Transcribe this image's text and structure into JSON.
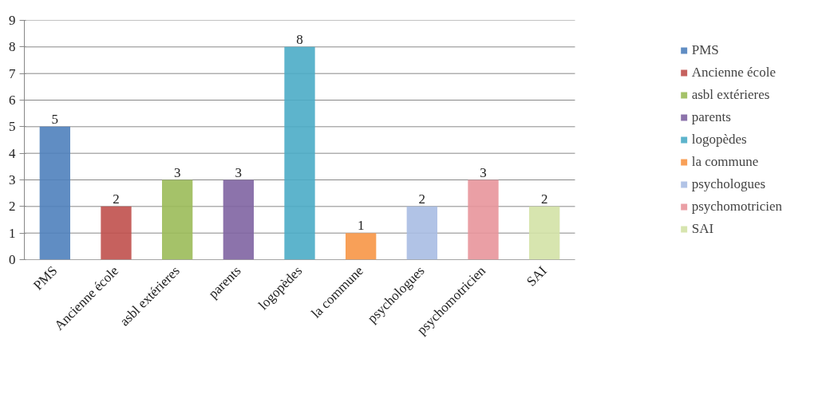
{
  "chart_data": {
    "type": "bar",
    "stacked": true,
    "categories": [
      "PMS",
      "Ancienne école",
      "asbl extérieres",
      "parents",
      "logopèdes",
      "la commune",
      "psychologues",
      "psychomotricien",
      "SAI"
    ],
    "series": [
      {
        "name": "PMS",
        "color": "#4f81bd",
        "values": [
          5,
          null,
          null,
          null,
          null,
          null,
          null,
          null,
          null
        ]
      },
      {
        "name": "Ancienne école",
        "color": "#c0504d",
        "values": [
          null,
          2,
          null,
          null,
          null,
          null,
          null,
          null,
          null
        ]
      },
      {
        "name": "asbl extérieres",
        "color": "#9bbb59",
        "values": [
          null,
          null,
          3,
          null,
          null,
          null,
          null,
          null,
          null
        ]
      },
      {
        "name": "parents",
        "color": "#8064a2",
        "values": [
          null,
          null,
          null,
          3,
          null,
          null,
          null,
          null,
          null
        ]
      },
      {
        "name": "logopèdes",
        "color": "#4bacc6",
        "values": [
          null,
          null,
          null,
          null,
          8,
          null,
          null,
          null,
          null
        ]
      },
      {
        "name": "la commune",
        "color": "#f79646",
        "values": [
          null,
          null,
          null,
          null,
          null,
          1,
          null,
          null,
          null
        ]
      },
      {
        "name": "psychologues",
        "color": "#a9bde3",
        "values": [
          null,
          null,
          null,
          null,
          null,
          null,
          2,
          null,
          null
        ]
      },
      {
        "name": "psychomotricien",
        "color": "#e8959b",
        "values": [
          null,
          null,
          null,
          null,
          null,
          null,
          null,
          3,
          null
        ]
      },
      {
        "name": "SAI",
        "color": "#d3e2a6",
        "values": [
          null,
          null,
          null,
          null,
          null,
          null,
          null,
          null,
          2
        ]
      }
    ],
    "ylim": [
      0,
      9
    ],
    "yticks": [
      0,
      1,
      2,
      3,
      4,
      5,
      6,
      7,
      8,
      9
    ],
    "grid": "y",
    "legend": "right",
    "data_labels": true
  }
}
